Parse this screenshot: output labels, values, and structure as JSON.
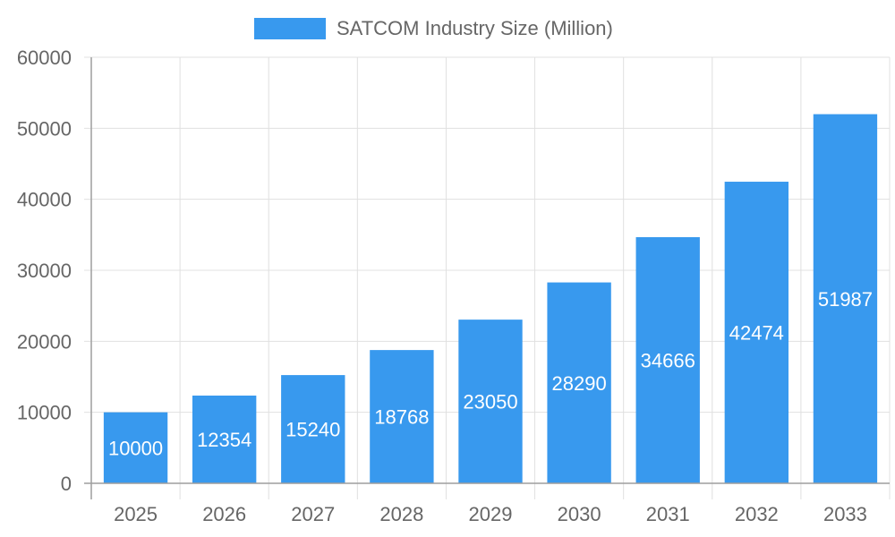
{
  "chart_data": {
    "type": "bar",
    "categories": [
      "2025",
      "2026",
      "2027",
      "2028",
      "2029",
      "2030",
      "2031",
      "2032",
      "2033"
    ],
    "series": [
      {
        "name": "SATCOM Industry Size (Million)",
        "values": [
          10000,
          12354,
          15240,
          18768,
          23050,
          28290,
          34666,
          42474,
          51987
        ],
        "color": "#3899ee"
      }
    ],
    "data_labels": [
      "10000",
      "12354",
      "15240",
      "18768",
      "23050",
      "28290",
      "34666",
      "42474",
      "51987"
    ],
    "y_ticks": [
      "0",
      "10000",
      "20000",
      "30000",
      "40000",
      "50000",
      "60000"
    ],
    "ylim": [
      0,
      60000
    ],
    "grid": true,
    "legend_position": "top-center"
  }
}
